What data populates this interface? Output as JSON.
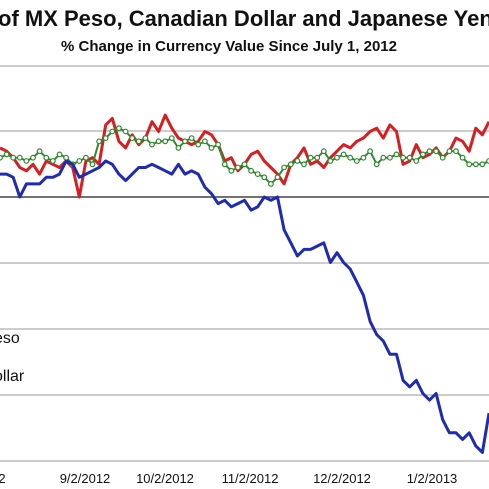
{
  "chart_data": {
    "type": "line",
    "title": "of MX Peso, Canadian Dollar and Japanese Yen v",
    "subtitle": "% Change in Currency Value Since July 1, 2012",
    "x_tick_labels": [
      "2",
      "9/2/2012",
      "10/2/2012",
      "11/2/2012",
      "12/2/2012",
      "1/2/2013"
    ],
    "legend_entries": [
      "eso",
      "ollar"
    ],
    "grid": "horizontal",
    "series": [
      {
        "color": "#d42020",
        "marker": "none",
        "x": [
          0,
          1,
          2,
          3,
          4,
          5,
          6,
          7,
          8,
          9,
          10,
          11,
          12,
          13,
          14,
          15,
          16,
          17,
          18,
          19,
          20,
          21,
          22,
          23,
          24,
          25,
          26,
          27,
          28,
          29,
          30,
          31,
          32,
          33,
          34,
          35,
          36,
          37,
          38,
          39,
          40,
          41,
          42,
          43,
          44,
          45,
          46,
          47,
          48,
          49,
          50,
          51,
          52,
          53,
          54,
          55,
          56,
          57,
          58,
          59,
          60,
          61,
          62,
          63,
          64,
          65,
          66,
          67,
          68,
          69,
          70,
          71,
          72,
          73,
          74
        ],
        "values": [
          0.75,
          0.7,
          0.6,
          0.45,
          0.4,
          0.5,
          0.35,
          0.55,
          0.5,
          0.45,
          0.55,
          0.45,
          0.0,
          0.55,
          0.6,
          0.5,
          1.1,
          1.2,
          0.85,
          0.75,
          0.95,
          0.8,
          0.9,
          1.15,
          1.0,
          1.25,
          1.05,
          0.9,
          0.85,
          0.8,
          0.85,
          1.0,
          0.95,
          0.8,
          0.55,
          0.6,
          0.4,
          0.5,
          0.65,
          0.7,
          0.55,
          0.45,
          0.35,
          0.2,
          0.5,
          0.6,
          0.75,
          0.5,
          0.55,
          0.45,
          0.6,
          0.7,
          0.8,
          0.75,
          0.85,
          0.9,
          1.0,
          1.05,
          0.9,
          1.1,
          1.0,
          0.5,
          0.55,
          0.8,
          0.6,
          0.65,
          0.75,
          0.6,
          0.7,
          0.9,
          0.85,
          0.7,
          1.05,
          0.95,
          1.15
        ]
      },
      {
        "color": "#2f8a2f",
        "marker": "circle",
        "x": [
          0,
          1,
          2,
          3,
          4,
          5,
          6,
          7,
          8,
          9,
          10,
          11,
          12,
          13,
          14,
          15,
          16,
          17,
          18,
          19,
          20,
          21,
          22,
          23,
          24,
          25,
          26,
          27,
          28,
          29,
          30,
          31,
          32,
          33,
          34,
          35,
          36,
          37,
          38,
          39,
          40,
          41,
          42,
          43,
          44,
          45,
          46,
          47,
          48,
          49,
          50,
          51,
          52,
          53,
          54,
          55,
          56,
          57,
          58,
          59,
          60,
          61,
          62,
          63,
          64,
          65,
          66,
          67,
          68,
          69,
          70,
          71,
          72,
          73,
          74
        ],
        "values": [
          0.6,
          0.65,
          0.6,
          0.6,
          0.55,
          0.6,
          0.7,
          0.6,
          0.55,
          0.65,
          0.6,
          0.5,
          0.55,
          0.6,
          0.5,
          0.85,
          0.9,
          1.0,
          1.05,
          1.0,
          0.9,
          0.85,
          0.9,
          0.8,
          0.85,
          0.85,
          0.9,
          0.75,
          0.85,
          0.9,
          0.8,
          0.85,
          0.75,
          0.8,
          0.5,
          0.4,
          0.45,
          0.5,
          0.4,
          0.35,
          0.3,
          0.2,
          0.3,
          0.45,
          0.5,
          0.55,
          0.5,
          0.6,
          0.6,
          0.7,
          0.55,
          0.6,
          0.65,
          0.6,
          0.55,
          0.6,
          0.7,
          0.5,
          0.6,
          0.6,
          0.65,
          0.6,
          0.6,
          0.55,
          0.65,
          0.7,
          0.7,
          0.6,
          0.7,
          0.7,
          0.6,
          0.5,
          0.5,
          0.5,
          0.55
        ]
      },
      {
        "color": "#1f2bb0",
        "marker": "none",
        "x": [
          0,
          1,
          2,
          3,
          4,
          5,
          6,
          7,
          8,
          9,
          10,
          11,
          12,
          13,
          14,
          15,
          16,
          17,
          18,
          19,
          20,
          21,
          22,
          23,
          24,
          25,
          26,
          27,
          28,
          29,
          30,
          31,
          32,
          33,
          34,
          35,
          36,
          37,
          38,
          39,
          40,
          41,
          42,
          43,
          44,
          45,
          46,
          47,
          48,
          49,
          50,
          51,
          52,
          53,
          54,
          55,
          56,
          57,
          58,
          59,
          60,
          61,
          62,
          63,
          64,
          65,
          66,
          67,
          68,
          69,
          70,
          71,
          72,
          73,
          74
        ],
        "values": [
          0.35,
          0.35,
          0.3,
          0.0,
          0.2,
          0.2,
          0.2,
          0.3,
          0.3,
          0.35,
          0.55,
          0.5,
          0.3,
          0.35,
          0.4,
          0.45,
          0.55,
          0.5,
          0.35,
          0.25,
          0.35,
          0.45,
          0.45,
          0.5,
          0.45,
          0.4,
          0.35,
          0.5,
          0.35,
          0.4,
          0.35,
          0.15,
          0.05,
          -0.1,
          -0.05,
          -0.15,
          -0.1,
          -0.05,
          -0.2,
          -0.15,
          0.0,
          -0.05,
          0.0,
          -0.5,
          -0.7,
          -0.9,
          -0.8,
          -0.8,
          -0.75,
          -0.7,
          -1.0,
          -0.85,
          -1.0,
          -1.1,
          -1.3,
          -1.5,
          -1.9,
          -2.1,
          -2.2,
          -2.4,
          -2.4,
          -2.8,
          -2.9,
          -2.8,
          -3.0,
          -3.1,
          -3.0,
          -3.4,
          -3.6,
          -3.6,
          -3.7,
          -3.6,
          -3.8,
          -3.9,
          -3.3
        ]
      }
    ]
  }
}
